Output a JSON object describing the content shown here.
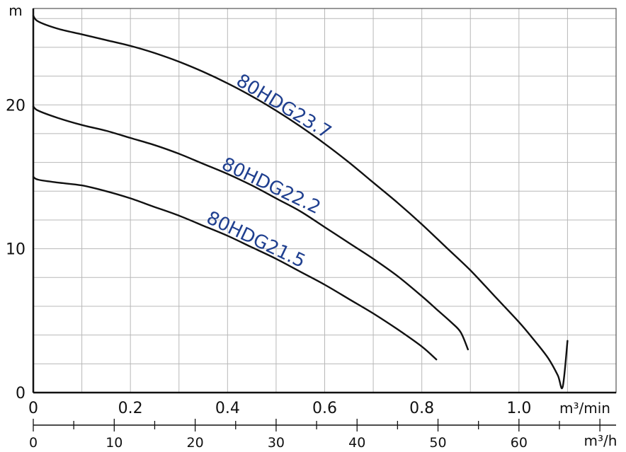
{
  "chart_data": {
    "type": "line",
    "title": "",
    "ylabel": "m",
    "xlabel": "m³/min",
    "xlabel_secondary": "m³/h",
    "xlim": [
      0,
      1.2
    ],
    "ylim": [
      0,
      26.7
    ],
    "secondary_xlim": [
      0,
      72
    ],
    "grid": true,
    "x_ticks": [
      "0",
      "0.2",
      "0.4",
      "0.6",
      "0.8",
      "1.0"
    ],
    "x_tick_values": [
      0,
      0.2,
      0.4,
      0.6,
      0.8,
      1.0
    ],
    "y_ticks": [
      "0",
      "10",
      "20"
    ],
    "y_tick_values": [
      0,
      10,
      20
    ],
    "secondary_x_ticks": [
      "0",
      "10",
      "20",
      "30",
      "40",
      "50",
      "60"
    ],
    "secondary_x_tick_values": [
      0,
      10,
      20,
      30,
      40,
      50,
      60
    ],
    "label_color": "#1f3f8f",
    "line_color": "#111111",
    "series": [
      {
        "name": "80HDG23.7",
        "x": [
          0,
          0.01,
          0.05,
          0.1,
          0.15,
          0.2,
          0.25,
          0.3,
          0.35,
          0.4,
          0.45,
          0.5,
          0.55,
          0.6,
          0.65,
          0.7,
          0.75,
          0.8,
          0.85,
          0.9,
          0.95,
          1.0,
          1.03,
          1.06,
          1.08,
          1.09,
          1.1
        ],
        "y": [
          26.2,
          25.8,
          25.3,
          24.9,
          24.5,
          24.1,
          23.6,
          23.0,
          22.3,
          21.5,
          20.6,
          19.6,
          18.5,
          17.3,
          16.0,
          14.6,
          13.2,
          11.7,
          10.1,
          8.5,
          6.7,
          4.9,
          3.7,
          2.4,
          1.2,
          0.4,
          3.6
        ]
      },
      {
        "name": "80HDG22.2",
        "x": [
          0,
          0.01,
          0.05,
          0.1,
          0.15,
          0.2,
          0.25,
          0.3,
          0.35,
          0.4,
          0.45,
          0.5,
          0.55,
          0.6,
          0.65,
          0.7,
          0.75,
          0.8,
          0.83,
          0.86,
          0.88,
          0.895
        ],
        "y": [
          19.9,
          19.6,
          19.1,
          18.6,
          18.2,
          17.7,
          17.2,
          16.6,
          15.9,
          15.2,
          14.4,
          13.5,
          12.6,
          11.5,
          10.4,
          9.3,
          8.1,
          6.7,
          5.8,
          4.9,
          4.2,
          3.0
        ]
      },
      {
        "name": "80HDG21.5",
        "x": [
          0,
          0.01,
          0.05,
          0.1,
          0.15,
          0.2,
          0.25,
          0.3,
          0.35,
          0.4,
          0.45,
          0.5,
          0.55,
          0.6,
          0.65,
          0.7,
          0.75,
          0.8,
          0.83
        ],
        "y": [
          15.0,
          14.8,
          14.6,
          14.4,
          14.0,
          13.5,
          12.9,
          12.3,
          11.6,
          10.9,
          10.1,
          9.3,
          8.4,
          7.5,
          6.5,
          5.5,
          4.4,
          3.2,
          2.3
        ]
      }
    ],
    "annotations": [
      {
        "text": "80HDG23.7",
        "series": "80HDG23.7",
        "at_x": 0.43
      },
      {
        "text": "80HDG22.2",
        "series": "80HDG22.2",
        "at_x": 0.4
      },
      {
        "text": "80HDG21.5",
        "series": "80HDG21.5",
        "at_x": 0.36
      }
    ]
  }
}
